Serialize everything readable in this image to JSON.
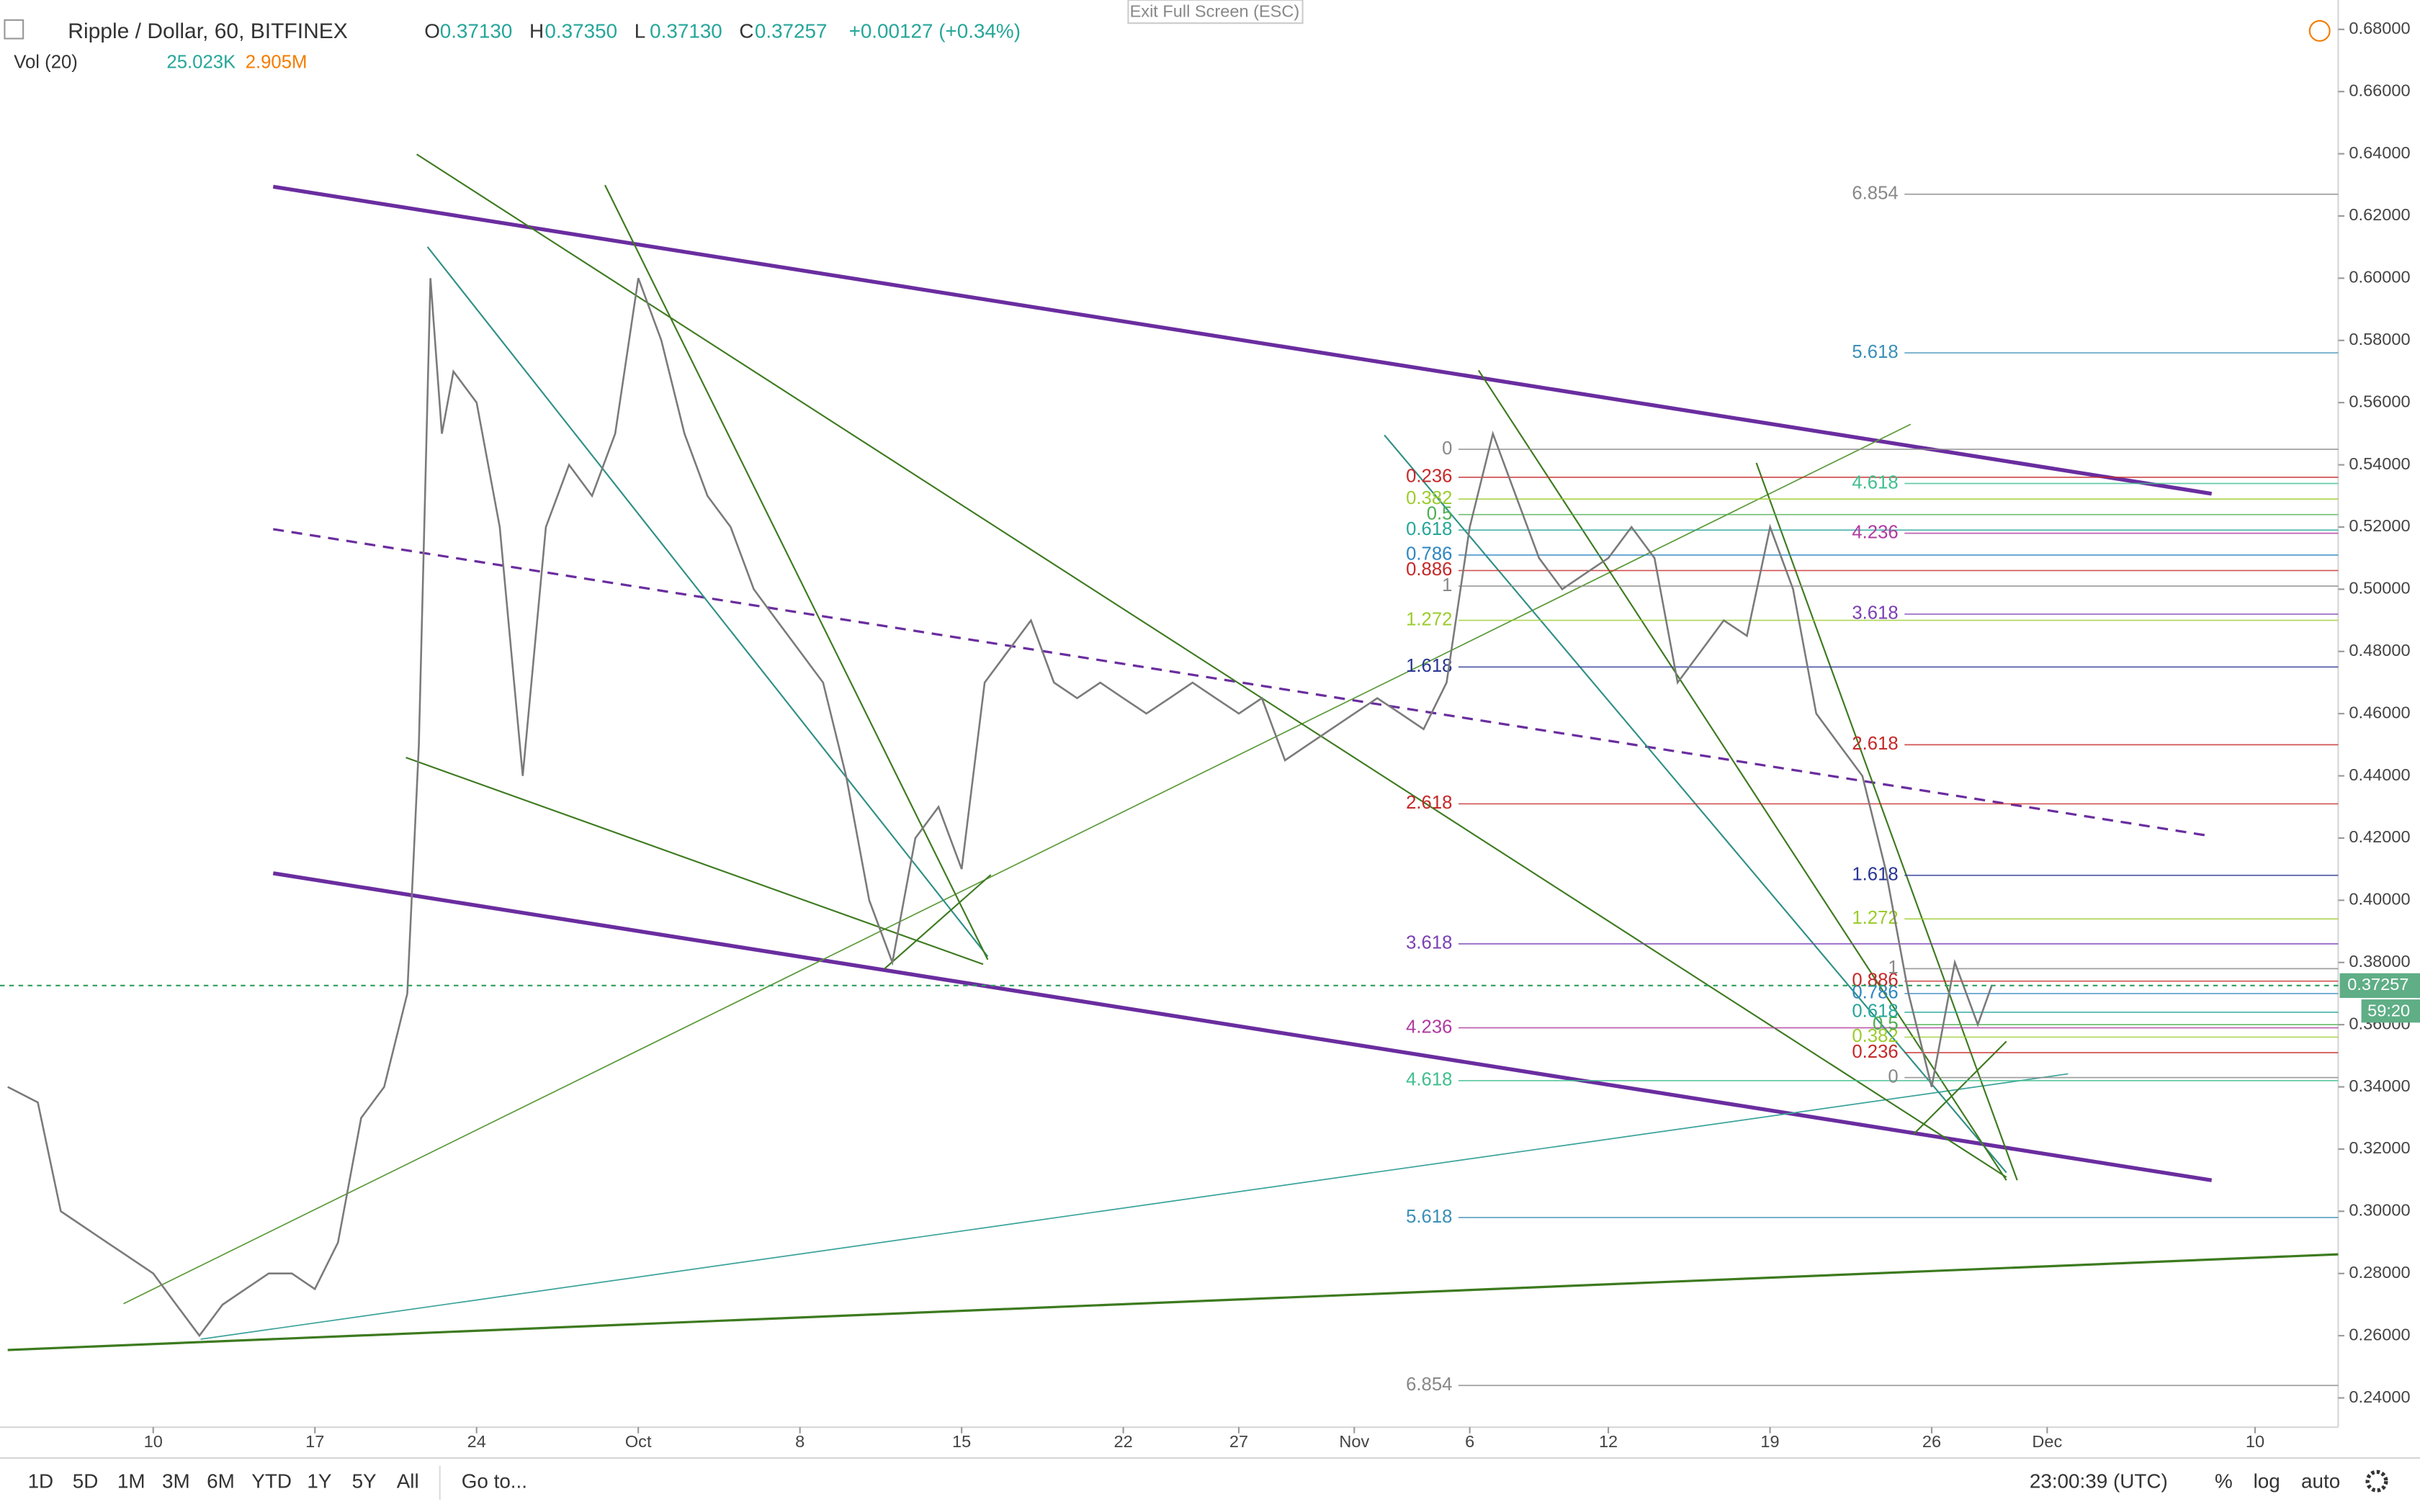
{
  "header": {
    "symbol": "Ripple / Dollar, 60, BITFINEX",
    "ohlc": [
      {
        "key": "O",
        "value": "0.37130"
      },
      {
        "key": "H",
        "value": "0.37350"
      },
      {
        "key": "L",
        "value": "0.37130"
      },
      {
        "key": "C",
        "value": "0.37257"
      }
    ],
    "change": "+0.00127 (+0.34%)",
    "volume_label": "Vol (20)",
    "volume_values": [
      "25.023K",
      "2.905M"
    ],
    "exit_button": "Exit Full Screen (ESC)"
  },
  "chart_data": {
    "type": "line",
    "color": "#7a7a7a",
    "x": [
      3.7,
      5,
      6,
      7,
      8,
      9,
      10,
      11,
      12,
      13,
      14,
      15,
      16,
      17,
      18,
      19,
      20,
      21,
      21.5,
      22,
      22.5,
      23,
      24,
      25,
      26,
      27,
      28,
      29,
      30,
      31,
      32,
      33,
      34,
      35,
      36,
      37,
      38,
      39,
      40,
      41,
      42,
      43,
      44,
      45,
      46,
      47,
      48,
      49,
      50,
      51,
      52,
      53,
      54,
      55,
      56,
      57,
      58,
      59,
      60,
      61,
      62,
      63,
      64,
      65,
      66,
      67,
      68,
      69,
      70,
      71,
      72,
      73,
      74,
      75,
      76,
      77,
      78,
      79,
      80,
      81,
      82,
      83,
      84,
      85,
      86,
      87,
      88,
      89,
      89.6
    ],
    "values": [
      0.34,
      0.335,
      0.3,
      0.295,
      0.29,
      0.285,
      0.28,
      0.27,
      0.26,
      0.27,
      0.275,
      0.28,
      0.28,
      0.275,
      0.29,
      0.33,
      0.34,
      0.37,
      0.45,
      0.6,
      0.55,
      0.57,
      0.56,
      0.52,
      0.44,
      0.52,
      0.54,
      0.53,
      0.55,
      0.6,
      0.58,
      0.55,
      0.53,
      0.52,
      0.5,
      0.49,
      0.48,
      0.47,
      0.44,
      0.4,
      0.38,
      0.42,
      0.43,
      0.41,
      0.47,
      0.48,
      0.49,
      0.47,
      0.465,
      0.47,
      0.465,
      0.46,
      0.465,
      0.47,
      0.465,
      0.46,
      0.465,
      0.445,
      0.45,
      0.455,
      0.46,
      0.465,
      0.46,
      0.455,
      0.47,
      0.52,
      0.55,
      0.53,
      0.51,
      0.5,
      0.505,
      0.51,
      0.52,
      0.51,
      0.47,
      0.48,
      0.49,
      0.485,
      0.52,
      0.5,
      0.46,
      0.45,
      0.44,
      0.41,
      0.37,
      0.34,
      0.38,
      0.36,
      0.37257
    ],
    "xlim": [
      3.7,
      104.6
    ],
    "xticks": [
      10,
      17,
      24,
      {
        "value": 31,
        "label": "Oct"
      },
      {
        "value": 38,
        "label": "8"
      },
      {
        "value": 45,
        "label": "15"
      },
      {
        "value": 52,
        "label": "22"
      },
      {
        "value": 57,
        "label": "27"
      },
      {
        "value": 62,
        "label": "Nov"
      },
      {
        "value": 67,
        "label": "6"
      },
      {
        "value": 73,
        "label": "12"
      },
      {
        "value": 80,
        "label": "19"
      },
      {
        "value": 87,
        "label": "26"
      },
      {
        "value": 92,
        "label": "Dec"
      },
      {
        "value": 101,
        "label": "10"
      }
    ],
    "ylim": [
      0.2306,
      0.682
    ],
    "yticks": [
      {
        "value": 0.24,
        "label": "0.24000"
      },
      {
        "value": 0.26,
        "label": "0.26000"
      },
      {
        "value": 0.28,
        "label": "0.28000"
      },
      {
        "value": 0.3,
        "label": "0.30000"
      },
      {
        "value": 0.32,
        "label": "0.32000"
      },
      {
        "value": 0.34,
        "label": "0.34000"
      },
      {
        "value": 0.36,
        "label": "0.36000"
      },
      {
        "value": 0.38,
        "label": "0.38000"
      },
      {
        "value": 0.4,
        "label": "0.40000"
      },
      {
        "value": 0.42,
        "label": "0.42000"
      },
      {
        "value": 0.44,
        "label": "0.44000"
      },
      {
        "value": 0.46,
        "label": "0.46000"
      },
      {
        "value": 0.48,
        "label": "0.48000"
      },
      {
        "value": 0.5,
        "label": "0.50000"
      },
      {
        "value": 0.52,
        "label": "0.52000"
      },
      {
        "value": 0.54,
        "label": "0.54000"
      },
      {
        "value": 0.56,
        "label": "0.56000"
      },
      {
        "value": 0.58,
        "label": "0.58000"
      },
      {
        "value": 0.6,
        "label": "0.60000"
      },
      {
        "value": 0.62,
        "label": "0.62000"
      },
      {
        "value": 0.64,
        "label": "0.64000"
      },
      {
        "value": 0.66,
        "label": "0.66000"
      },
      {
        "value": 0.68,
        "label": "0.68000"
      }
    ],
    "last_price_label": "0.37257",
    "countdown": "59:20",
    "fib_levels": [
      {
        "levels": [
          {
            "label": "0",
            "value": 0.545,
            "color": "#888888"
          },
          {
            "label": "0.236",
            "value": 0.536,
            "color": "#c62828"
          },
          {
            "label": "0.382",
            "value": 0.529,
            "color": "#9ccc2c"
          },
          {
            "label": "0.5",
            "value": 0.524,
            "color": "#4caf50"
          },
          {
            "label": "0.618",
            "value": 0.519,
            "color": "#26a69a"
          },
          {
            "label": "0.786",
            "value": 0.511,
            "color": "#2e86c1"
          },
          {
            "label": "0.886",
            "value": 0.506,
            "color": "#c62828"
          },
          {
            "label": "1",
            "value": 0.501,
            "color": "#888888"
          },
          {
            "label": "1.272",
            "value": 0.49,
            "color": "#9ccc2c"
          },
          {
            "label": "1.618",
            "value": 0.475,
            "color": "#283593"
          },
          {
            "label": "2.618",
            "value": 0.431,
            "color": "#c62828"
          },
          {
            "label": "3.618",
            "value": 0.386,
            "color": "#7b3fb5"
          },
          {
            "label": "4.236",
            "value": 0.359,
            "color": "#b03aa0"
          },
          {
            "label": "4.618",
            "value": 0.342,
            "color": "#3fbf8f"
          },
          {
            "label": "5.618",
            "value": 0.298,
            "color": "#3a8fb7"
          },
          {
            "label": "6.854",
            "value": 0.244,
            "color": "#888888"
          }
        ]
      },
      {
        "levels": [
          {
            "label": "0",
            "value": 0.343,
            "color": "#888888"
          },
          {
            "label": "0.236",
            "value": 0.351,
            "color": "#c62828"
          },
          {
            "label": "0.382",
            "value": 0.356,
            "color": "#9ccc2c"
          },
          {
            "label": "0.5",
            "value": 0.36,
            "color": "#4caf50"
          },
          {
            "label": "0.618",
            "value": 0.364,
            "color": "#26a69a"
          },
          {
            "label": "0.786",
            "value": 0.37,
            "color": "#2e86c1"
          },
          {
            "label": "0.886",
            "value": 0.374,
            "color": "#c62828"
          },
          {
            "label": "1",
            "value": 0.378,
            "color": "#888888"
          },
          {
            "label": "1.272",
            "value": 0.394,
            "color": "#9ccc2c"
          },
          {
            "label": "1.618",
            "value": 0.408,
            "color": "#283593"
          },
          {
            "label": "2.618",
            "value": 0.45,
            "color": "#c62828"
          },
          {
            "label": "3.618",
            "value": 0.492,
            "color": "#7b3fb5"
          },
          {
            "label": "4.236",
            "value": 0.518,
            "color": "#b03aa0"
          },
          {
            "label": "4.618",
            "value": 0.534,
            "color": "#3fbf8f"
          },
          {
            "label": "5.618",
            "value": 0.576,
            "color": "#3a8fb7"
          },
          {
            "label": "6.854",
            "value": 0.627,
            "color": "#888888"
          }
        ]
      }
    ]
  },
  "toolbar": {
    "ranges": [
      "1D",
      "5D",
      "1M",
      "3M",
      "6M",
      "YTD",
      "1Y",
      "5Y",
      "All"
    ],
    "goto": "Go to...",
    "clock": "23:00:39 (UTC)",
    "options": [
      "%",
      "log",
      "auto"
    ]
  }
}
